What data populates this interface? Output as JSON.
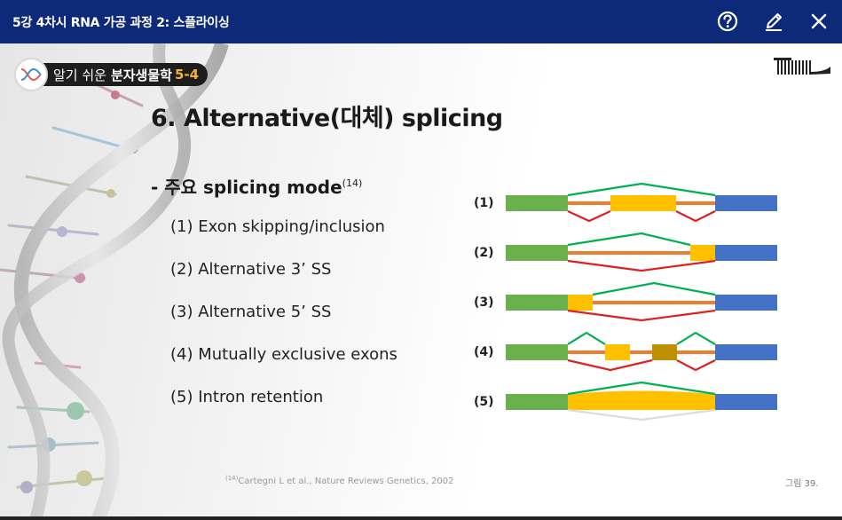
{
  "topbar": {
    "title": "5강 4차시 RNA 가공 과정 2: 스플라이싱",
    "help_icon": "help-circle-icon",
    "edit_icon": "pencil-icon",
    "close_icon": "close-icon"
  },
  "badge": {
    "prefix": "알기 쉬운",
    "name": "분자생물학",
    "number": "5-4"
  },
  "slide": {
    "title": "6. Alternative(대체) splicing",
    "subtitle": "- 주요 splicing mode",
    "subtitle_ref": "(14)",
    "modes": [
      "(1)  Exon skipping/inclusion",
      "(2)  Alternative 3’ SS",
      "(3)  Alternative 5’ SS",
      "(4)  Mutually exclusive exons",
      "(5)  Intron retention"
    ],
    "citation_ref": "(14)",
    "citation": "Cartegni L et al., Nature Reviews Genetics, 2002",
    "figure_label": "그림 39."
  },
  "diagram": {
    "rows": [
      "(1)",
      "(2)",
      "(3)",
      "(4)",
      "(5)"
    ],
    "colors": {
      "exon_left": "#6ab04c",
      "exon_right": "#4472c4",
      "alt_exon": "#ffc000",
      "alt_exon_dark": "#bf9000",
      "intron": "#ed7d31",
      "splice_green": "#00b050",
      "splice_red": "#e02020"
    }
  },
  "colors": {
    "topbar": "#0d2a78",
    "accent": "#f5b52a"
  }
}
